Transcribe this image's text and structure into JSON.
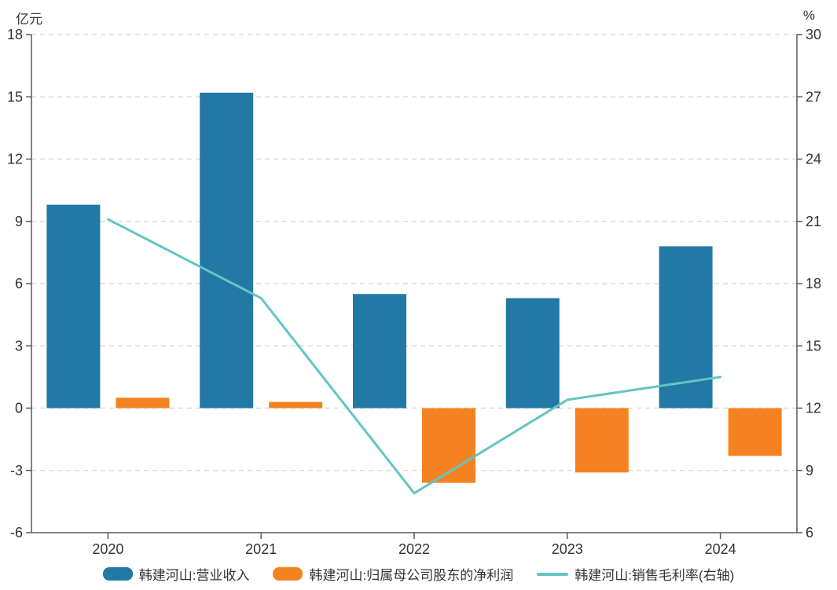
{
  "chart_data": {
    "type": "combo",
    "categories": [
      "2020",
      "2021",
      "2022",
      "2023",
      "2024"
    ],
    "series": [
      {
        "name": "韩建河山:营业收入",
        "type": "bar",
        "axis": "left",
        "color": "#2379A5",
        "values": [
          9.8,
          15.2,
          5.5,
          5.3,
          7.8
        ]
      },
      {
        "name": "韩建河山:归属母公司股东的净利润",
        "type": "bar",
        "axis": "left",
        "color": "#F58220",
        "values": [
          0.5,
          0.3,
          -3.6,
          -3.1,
          -2.3
        ]
      },
      {
        "name": "韩建河山:销售毛利率(右轴)",
        "type": "line",
        "axis": "right",
        "color": "#64C5C2",
        "values": [
          21.1,
          17.3,
          7.9,
          12.4,
          13.5
        ]
      }
    ],
    "left_axis": {
      "title": "亿元",
      "min": -6,
      "max": 18,
      "step": 3,
      "ticks": [
        18,
        15,
        12,
        9,
        6,
        3,
        0,
        -3,
        -6
      ]
    },
    "right_axis": {
      "title": "%",
      "min": 6,
      "max": 30,
      "step": 3,
      "ticks": [
        30,
        27,
        24,
        21,
        18,
        15,
        12,
        9,
        6
      ]
    },
    "grid": "dashed-horizontal",
    "legend_position": "bottom",
    "colors": {
      "axis_line": "#595959",
      "grid_line": "#DBDBDB",
      "tick_label": "#333333",
      "background": "#FFFFFF"
    }
  }
}
